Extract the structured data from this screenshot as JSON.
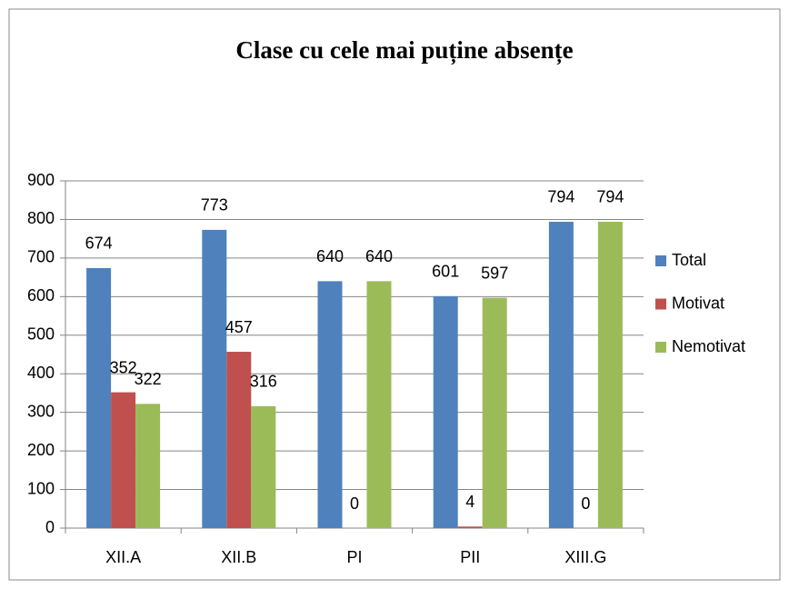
{
  "chart_data": {
    "type": "bar",
    "title": "Clase cu cele mai puține absențe",
    "categories": [
      "XII.A",
      "XII.B",
      "PI",
      "PII",
      "XIII.G"
    ],
    "series": [
      {
        "name": "Total",
        "color": "#4f81bd",
        "values": [
          674,
          773,
          640,
          601,
          794
        ]
      },
      {
        "name": "Motivat",
        "color": "#c0504d",
        "values": [
          352,
          457,
          0,
          4,
          0
        ]
      },
      {
        "name": "Nemotivat",
        "color": "#9bbb59",
        "values": [
          322,
          316,
          640,
          597,
          794
        ]
      }
    ],
    "ylim": [
      0,
      900
    ],
    "yticks": [
      0,
      100,
      200,
      300,
      400,
      500,
      600,
      700,
      800,
      900
    ],
    "grid": true,
    "legend": "right"
  }
}
